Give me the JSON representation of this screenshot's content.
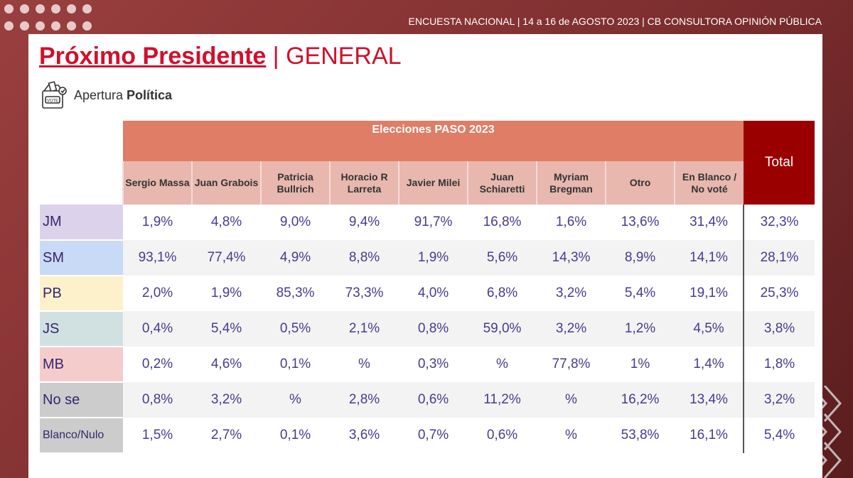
{
  "header": {
    "topline": "ENCUESTA NACIONAL | 14 a 16 de AGOSTO 2023 | CB CONSULTORA OPINIÓN PÚBLICA"
  },
  "title": {
    "main": "Próximo Presidente",
    "separator": " | ",
    "suffix": "GENERAL"
  },
  "subtitle": {
    "normal": "Apertura ",
    "bold": "Política",
    "icon": "ballot-box-icon",
    "icon_text": "VOTE"
  },
  "colors": {
    "accent": "#d0102b",
    "group_header": "#e07d67",
    "column_header": "#e8b7ae",
    "total_header": "#9b0000",
    "text": "#4a3a8e"
  },
  "chart_data": {
    "type": "table",
    "group_header": "Elecciones PASO 2023",
    "total_header": "Total",
    "columns": [
      "Sergio Massa",
      "Juan Grabois",
      "Patricia Bullrich",
      "Horacio R Larreta",
      "Javier Milei",
      "Juan Schiaretti",
      "Myriam Bregman",
      "Otro",
      "En Blanco / No voté"
    ],
    "rows": [
      {
        "label": "JM",
        "color": "#dcd3ea",
        "values": [
          "1,9%",
          "4,8%",
          "9,0%",
          "9,4%",
          "91,7%",
          "16,8%",
          "1,6%",
          "13,6%",
          "31,4%"
        ],
        "total": "32,3%"
      },
      {
        "label": "SM",
        "color": "#c9daf6",
        "values": [
          "93,1%",
          "77,4%",
          "4,9%",
          "8,8%",
          "1,9%",
          "5,6%",
          "14,3%",
          "8,9%",
          "14,1%"
        ],
        "total": "28,1%"
      },
      {
        "label": "PB",
        "color": "#fdf1cc",
        "values": [
          "2,0%",
          "1,9%",
          "85,3%",
          "73,3%",
          "4,0%",
          "6,8%",
          "3,2%",
          "5,4%",
          "19,1%"
        ],
        "total": "25,3%"
      },
      {
        "label": "JS",
        "color": "#d1e1e2",
        "values": [
          "0,4%",
          "5,4%",
          "0,5%",
          "2,1%",
          "0,8%",
          "59,0%",
          "3,2%",
          "1,2%",
          "4,5%"
        ],
        "total": "3,8%"
      },
      {
        "label": "MB",
        "color": "#f4cccc",
        "values": [
          "0,2%",
          "4,6%",
          "0,1%",
          "%",
          "0,3%",
          "%",
          "77,8%",
          "1%",
          "1,4%"
        ],
        "total": "1,8%"
      },
      {
        "label": "No se",
        "color": "#cccccc",
        "values": [
          "0,8%",
          "3,2%",
          "%",
          "2,8%",
          "0,6%",
          "11,2%",
          "%",
          "16,2%",
          "13,4%"
        ],
        "total": "3,2%"
      },
      {
        "label": "Blanco/Nulo",
        "color": "#cccccc",
        "values": [
          "1,5%",
          "2,7%",
          "0,1%",
          "3,6%",
          "0,7%",
          "0,6%",
          "%",
          "53,8%",
          "16,1%"
        ],
        "total": "5,4%"
      }
    ]
  }
}
